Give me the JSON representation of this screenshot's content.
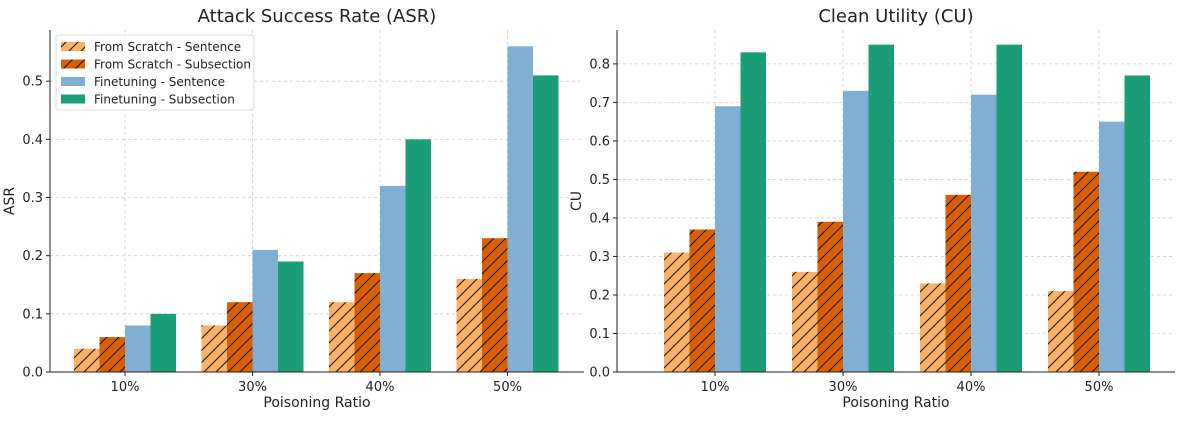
{
  "chart_data": [
    {
      "type": "bar",
      "title": "Attack Success Rate (ASR)",
      "xlabel": "Poisoning Ratio",
      "ylabel": "ASR",
      "categories": [
        "10%",
        "30%",
        "40%",
        "50%"
      ],
      "ylim": [
        0,
        0.588
      ],
      "yticks": [
        "0.0",
        "0.1",
        "0.2",
        "0.3",
        "0.4",
        "0.5"
      ],
      "grid": true,
      "legend": "top-left",
      "series": [
        {
          "name": "From Scratch - Sentence",
          "values": [
            0.04,
            0.08,
            0.12,
            0.16
          ],
          "color": "#fdb165",
          "hatch": true
        },
        {
          "name": "From Scratch - Subsection",
          "values": [
            0.06,
            0.12,
            0.17,
            0.23
          ],
          "color": "#d95f02",
          "hatch": true
        },
        {
          "name": "Finetuning - Sentence",
          "values": [
            0.08,
            0.21,
            0.32,
            0.56
          ],
          "color": "#7fafd1",
          "hatch": false
        },
        {
          "name": "Finetuning - Subsection",
          "values": [
            0.1,
            0.19,
            0.4,
            0.51
          ],
          "color": "#1b9e77",
          "hatch": false
        }
      ]
    },
    {
      "type": "bar",
      "title": "Clean Utility (CU)",
      "xlabel": "Poisoning Ratio",
      "ylabel": "CU",
      "categories": [
        "10%",
        "30%",
        "40%",
        "50%"
      ],
      "ylim": [
        0,
        0.888
      ],
      "yticks": [
        "0.0",
        "0.1",
        "0.2",
        "0.3",
        "0.4",
        "0.5",
        "0.6",
        "0.7",
        "0.8"
      ],
      "grid": true,
      "series": [
        {
          "values": [
            0.31,
            0.26,
            0.23,
            0.21
          ],
          "color": "#fdb165",
          "hatch": true
        },
        {
          "values": [
            0.37,
            0.39,
            0.46,
            0.52
          ],
          "color": "#d95f02",
          "hatch": true
        },
        {
          "values": [
            0.69,
            0.73,
            0.72,
            0.65
          ],
          "color": "#7fafd1",
          "hatch": false
        },
        {
          "values": [
            0.83,
            0.85,
            0.85,
            0.77
          ],
          "color": "#1b9e77",
          "hatch": false
        }
      ]
    }
  ]
}
